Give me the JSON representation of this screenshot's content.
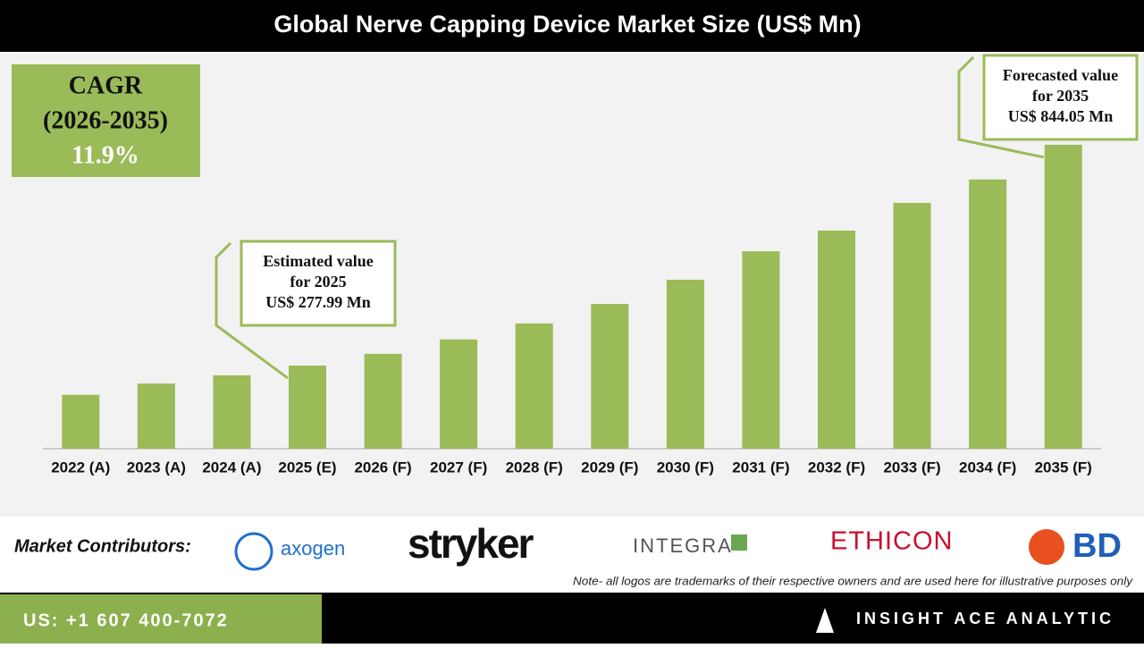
{
  "chart_data": {
    "type": "bar",
    "title": "Global Nerve Capping Device Market Size (US$ Mn)",
    "categories": [
      "2022 (A)",
      "2023 (A)",
      "2024 (A)",
      "2025 (E)",
      "2026 (F)",
      "2027 (F)",
      "2028 (F)",
      "2029 (F)",
      "2030 (F)",
      "2031 (F)",
      "2032 (F)",
      "2033 (F)",
      "2034 (F)",
      "2035 (F)"
    ],
    "values": [
      203,
      232,
      253,
      277.99,
      308,
      345,
      386,
      436,
      498,
      571,
      624,
      695,
      755,
      844.05
    ],
    "color": "#9bbb59",
    "ylim": [
      65,
      900
    ],
    "annotations": [
      {
        "index": 3,
        "lines": [
          "Estimated value",
          "for 2025",
          "US$ 277.99 Mn"
        ]
      },
      {
        "index": 13,
        "lines": [
          "Forecasted value",
          "for 2035",
          "US$ 844.05 Mn"
        ]
      }
    ]
  },
  "cagr": [
    "CAGR",
    "(2026-2035)",
    "11.9%"
  ],
  "contributors": {
    "label": "Market Contributors:",
    "logos": [
      "axogen",
      "stryker",
      "INTEGRA",
      "ETHICON",
      "BD"
    ]
  },
  "note": "Note- all logos are trademarks of their respective owners and are used here for illustrative purposes only",
  "footer": {
    "phone": "US: +1 607 400-7072",
    "brand": "INSIGHT ACE ANALYTIC"
  }
}
